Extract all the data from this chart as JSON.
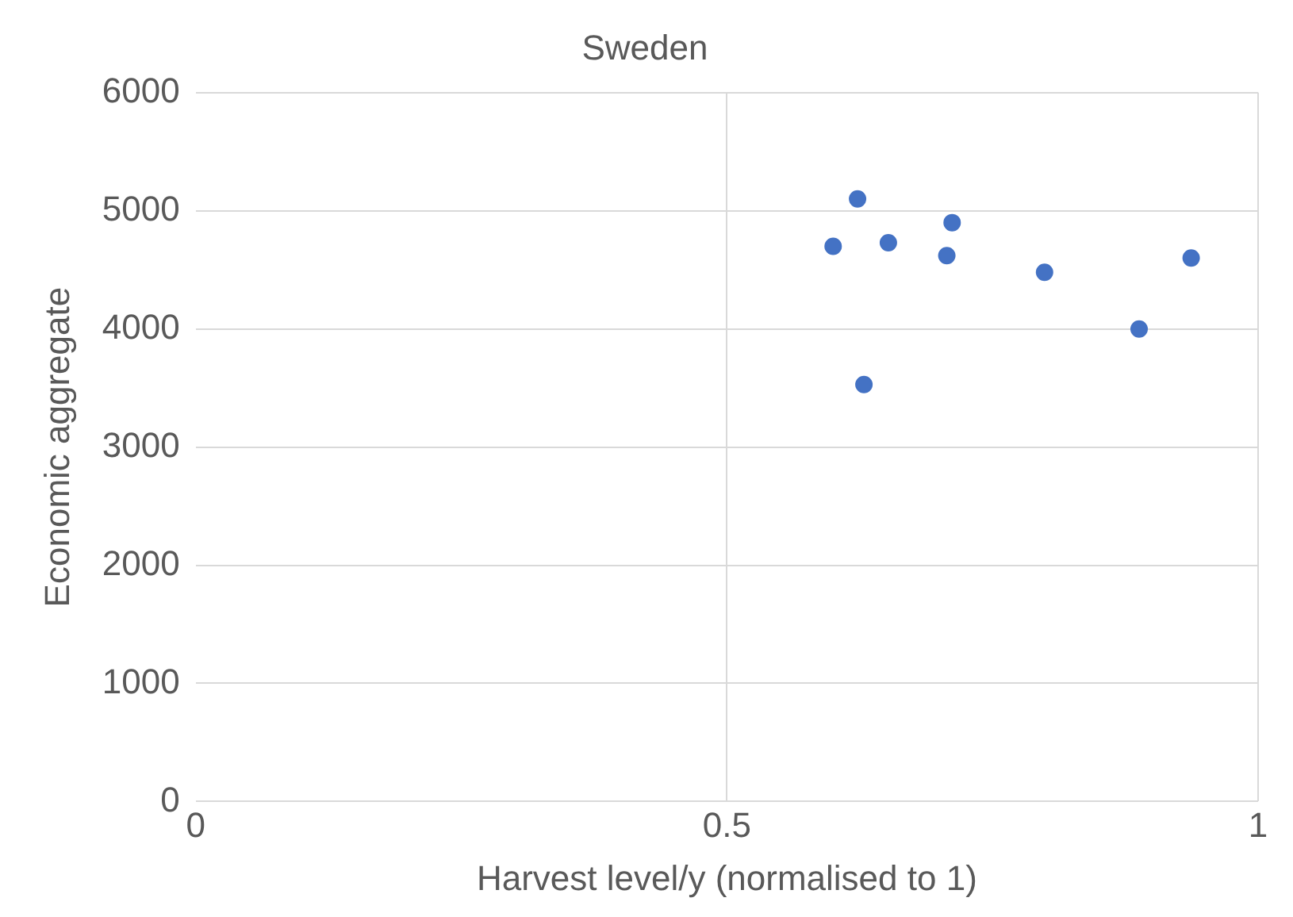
{
  "chart_data": {
    "type": "scatter",
    "title": "Sweden",
    "xlabel": "Harvest level/y (normalised to 1)",
    "ylabel": "Economic aggregate",
    "x": [
      0.6,
      0.623,
      0.652,
      0.712,
      0.707,
      0.799,
      0.888,
      0.937,
      0.629
    ],
    "series": [
      {
        "color": "#4472c4",
        "values": [
          4700,
          5100,
          4730,
          4900,
          4620,
          4480,
          4000,
          4600,
          3530
        ]
      }
    ],
    "xlim": [
      0,
      1
    ],
    "xticks": [
      0,
      0.5,
      1
    ],
    "ylim": [
      0,
      6000
    ],
    "yticks": [
      0,
      1000,
      2000,
      3000,
      4000,
      5000,
      6000
    ],
    "grid": true,
    "legend": false,
    "marker": "circle"
  }
}
